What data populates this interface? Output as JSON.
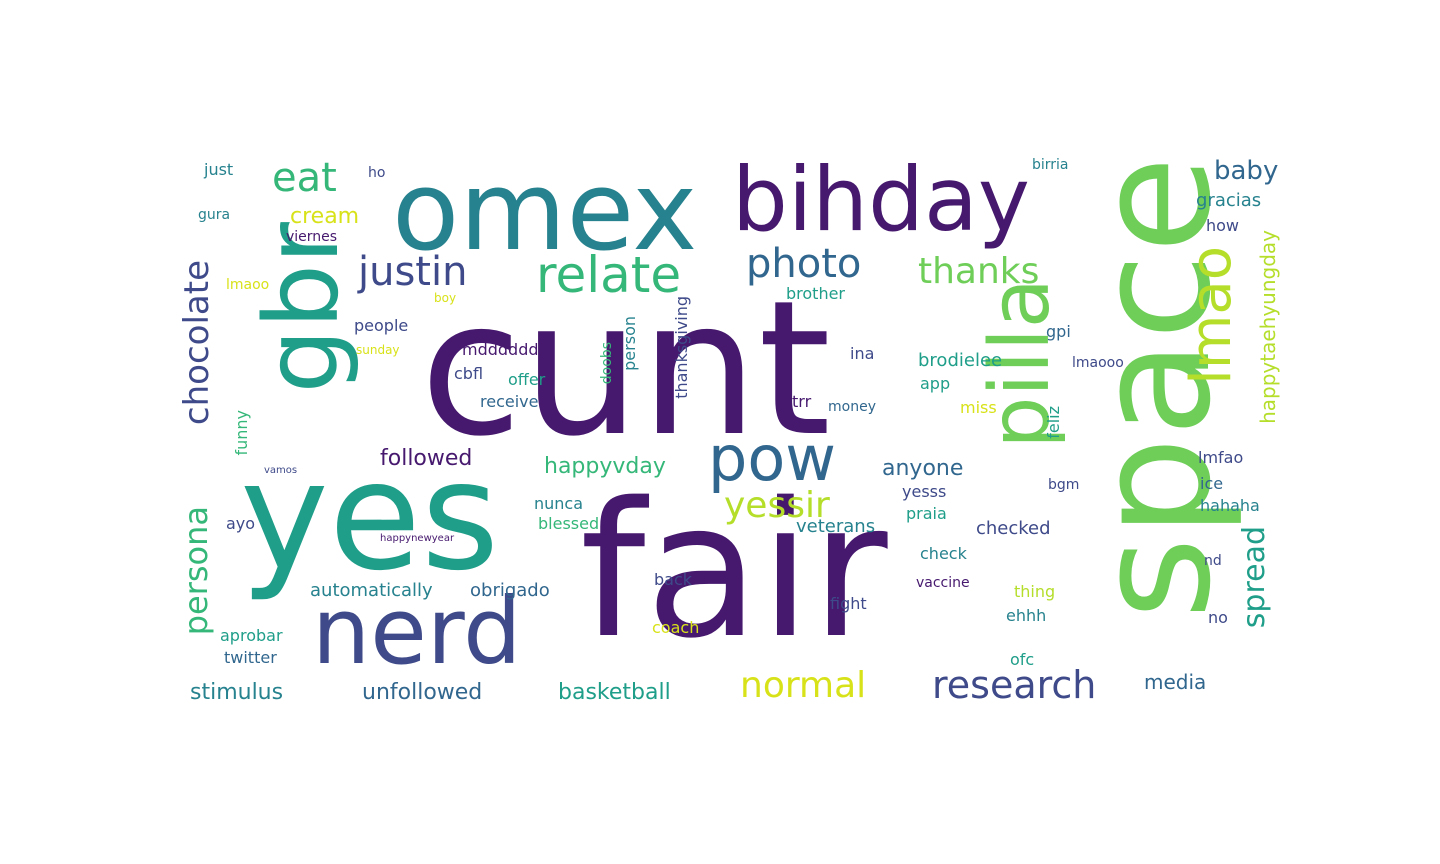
{
  "cloud": {
    "palette": {
      "dark_purple": "#46196e",
      "indigo": "#3e4a89",
      "blue": "#31678e",
      "teal": "#26828e",
      "green_teal": "#1f9e89",
      "green": "#35b779",
      "light_green": "#6ece58",
      "yellow_green": "#b5de2b",
      "yellow": "#d8e219"
    },
    "words": [
      "cunt",
      "fair",
      "space",
      "yes",
      "omex",
      "bihday",
      "gbr",
      "nerd",
      "pilla",
      "lmao",
      "pow",
      "relate",
      "justin",
      "photo",
      "eat",
      "thanks",
      "chocolate",
      "research",
      "normal",
      "persona",
      "yessir",
      "spread",
      "happytaehyungday",
      "cream",
      "baby",
      "gracias",
      "followed",
      "happyvday",
      "anyone",
      "brodielee",
      "stimulus",
      "unfollowed",
      "basketball",
      "automatically",
      "obrigado",
      "media",
      "people",
      "mddddddrr",
      "cbfl",
      "offer",
      "receive",
      "thanksgiving",
      "person",
      "doobs",
      "veterans",
      "blessed",
      "nunca",
      "check",
      "checked",
      "praia",
      "yesss",
      "funny",
      "twitter",
      "aprobar",
      "ayo",
      "viernes",
      "just",
      "gura",
      "brother",
      "trr",
      "app",
      "money",
      "ina",
      "fight",
      "back",
      "vaccine",
      "thing",
      "ehhh",
      "lmfao",
      "ice",
      "hahaha",
      "feliz",
      "bgm",
      "gpi",
      "lmaooo",
      "miss",
      "no",
      "nd",
      "ofc",
      "coach",
      "lmaoo",
      "how",
      "ho",
      "birria",
      "boy",
      "sunday",
      "happynewyear",
      "vamos"
    ]
  }
}
